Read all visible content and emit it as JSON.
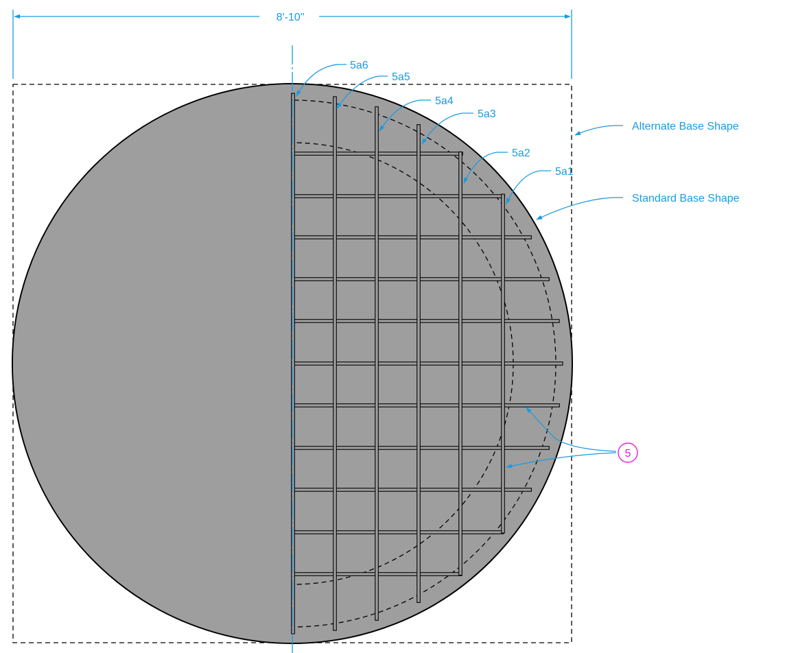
{
  "colors": {
    "annotation": "#1a9ae0",
    "callout": "#e020e0",
    "concrete_fill": "#9e9e9e",
    "outline": "#000000"
  },
  "dimension": {
    "width_label": "8'-10\""
  },
  "labels": {
    "alternate_base_shape": "Alternate Base Shape",
    "standard_base_shape": "Standard Base Shape"
  },
  "bar_marks": {
    "m1": "5a1",
    "m2": "5a2",
    "m3": "5a3",
    "m4": "5a4",
    "m5": "5a5",
    "m6": "5a6"
  },
  "callout": {
    "number": "5"
  }
}
